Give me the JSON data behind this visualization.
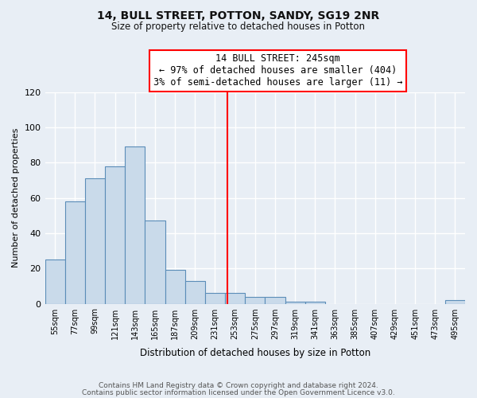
{
  "title": "14, BULL STREET, POTTON, SANDY, SG19 2NR",
  "subtitle": "Size of property relative to detached houses in Potton",
  "xlabel": "Distribution of detached houses by size in Potton",
  "ylabel": "Number of detached properties",
  "bar_labels": [
    "55sqm",
    "77sqm",
    "99sqm",
    "121sqm",
    "143sqm",
    "165sqm",
    "187sqm",
    "209sqm",
    "231sqm",
    "253sqm",
    "275sqm",
    "297sqm",
    "319sqm",
    "341sqm",
    "363sqm",
    "385sqm",
    "407sqm",
    "429sqm",
    "451sqm",
    "473sqm",
    "495sqm"
  ],
  "bar_heights": [
    25,
    58,
    71,
    78,
    89,
    47,
    19,
    13,
    6,
    6,
    4,
    4,
    1,
    1,
    0,
    0,
    0,
    0,
    0,
    0,
    2
  ],
  "bin_edges": [
    55,
    77,
    99,
    121,
    143,
    165,
    187,
    209,
    231,
    253,
    275,
    297,
    319,
    341,
    363,
    385,
    407,
    429,
    451,
    473,
    495
  ],
  "bin_width": 22,
  "bar_color": "#c9daea",
  "bar_edge_color": "#5b8db8",
  "vline_x": 245,
  "vline_color": "red",
  "annotation_title": "14 BULL STREET: 245sqm",
  "annotation_line1": "← 97% of detached houses are smaller (404)",
  "annotation_line2": "3% of semi-detached houses are larger (11) →",
  "annotation_box_color": "white",
  "annotation_box_edge_color": "red",
  "ylim": [
    0,
    120
  ],
  "yticks": [
    0,
    20,
    40,
    60,
    80,
    100,
    120
  ],
  "footer1": "Contains HM Land Registry data © Crown copyright and database right 2024.",
  "footer2": "Contains public sector information licensed under the Open Government Licence v3.0.",
  "bg_color": "#e8eef5",
  "plot_bg_color": "#e8eef5",
  "grid_color": "#ffffff"
}
